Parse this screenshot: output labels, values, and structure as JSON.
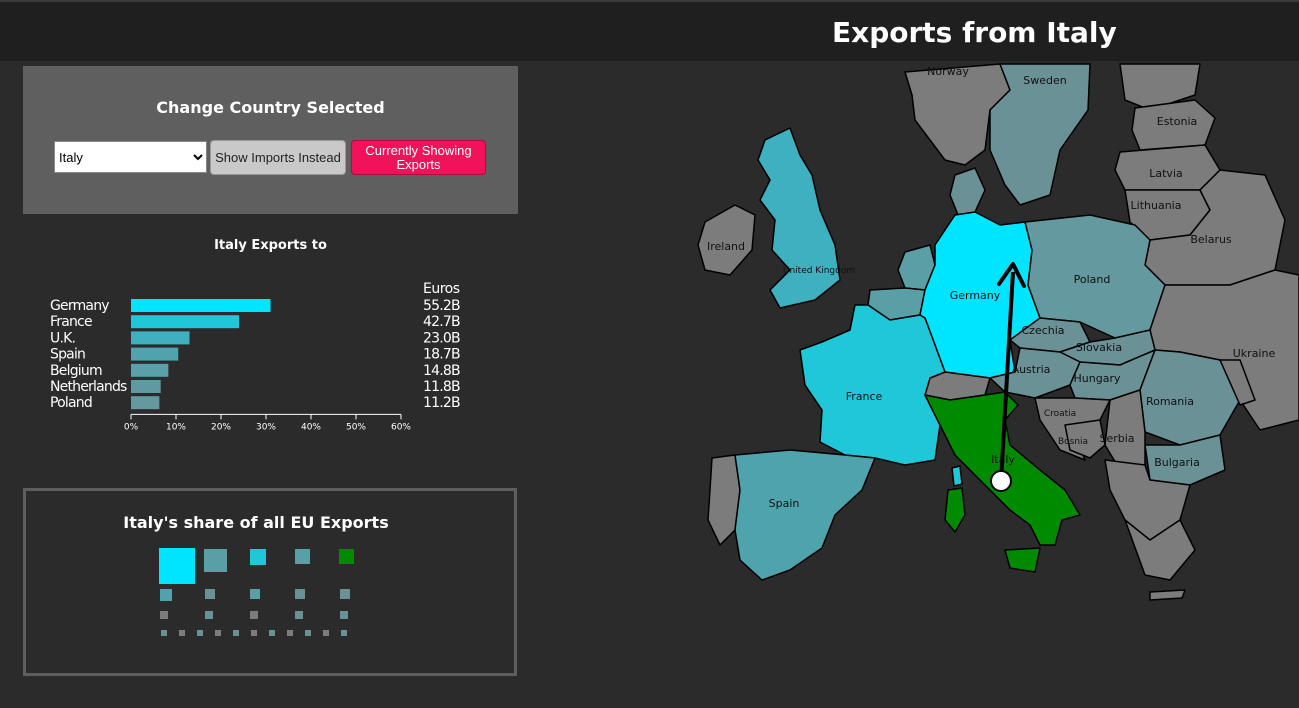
{
  "header": {
    "title": "Exports from Italy"
  },
  "controls": {
    "panel_title": "Change Country Selected",
    "selected_country": "Italy",
    "imports_button": "Show Imports Instead",
    "exports_button": "Currently Showing Exports",
    "exports_button_color": "#f0125a"
  },
  "chart_data": {
    "type": "bar",
    "title": "Italy Exports to",
    "value_header": "Euros",
    "categories": [
      "Germany",
      "France",
      "U.K.",
      "Spain",
      "Belgium",
      "Netherlands",
      "Poland"
    ],
    "values": [
      31,
      24,
      13,
      10.5,
      8.3,
      6.6,
      6.3
    ],
    "value_labels": [
      "55.2B",
      "42.7B",
      "23.0B",
      "18.7B",
      "14.8B",
      "11.8B",
      "11.2B"
    ],
    "x_ticks": [
      "0%",
      "10%",
      "20%",
      "30%",
      "40%",
      "50%",
      "60%"
    ],
    "xlim": [
      0,
      60
    ],
    "colors": [
      "#00e5ff",
      "#1fc8d8",
      "#3fb0c0",
      "#4fa3ad",
      "#59a0a8",
      "#609aa0",
      "#64999f"
    ]
  },
  "share": {
    "title": "Italy's share of all EU Exports"
  },
  "map": {
    "selected_country": "Italy",
    "labels": {
      "norway": "Norway",
      "sweden": "Sweden",
      "estonia": "Estonia",
      "latvia": "Latvia",
      "lithuania": "Lithuania",
      "belarus": "Belarus",
      "ireland": "Ireland",
      "uk": "United Kingdom",
      "germany": "Germany",
      "poland": "Poland",
      "czechia": "Czechia",
      "slovakia": "Slovakia",
      "ukraine": "Ukraine",
      "austria": "Austria",
      "hungary": "Hungary",
      "france": "France",
      "romania": "Romania",
      "croatia": "Croatia",
      "bosnia": "Bosnia",
      "serbia": "Serbia",
      "italy": "Italy",
      "bulgaria": "Bulgaria",
      "spain": "Spain"
    },
    "colors": {
      "italy": "#008a00",
      "germany": "#00e5ff",
      "france": "#1fc8d8",
      "uk": "#3fb0c0",
      "spain": "#4fa3ad",
      "benelux": "#5a9ea6",
      "poland": "#64999f",
      "mid": "#6a9196",
      "other": "#7c7c7c",
      "arrow": "#000000"
    }
  }
}
